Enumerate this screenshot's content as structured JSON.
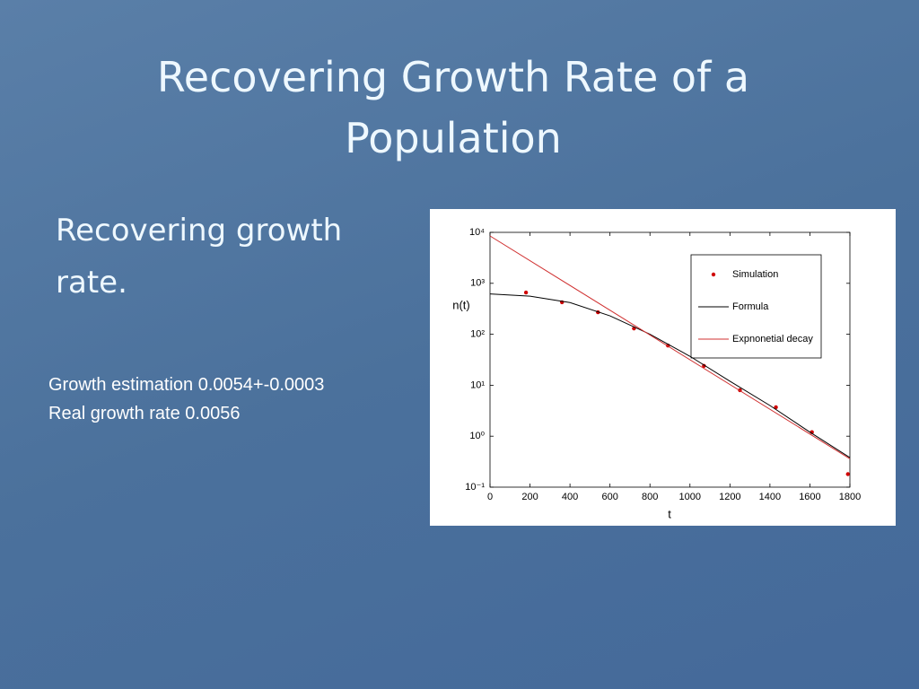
{
  "slide": {
    "title": "Recovering Growth Rate of a Population",
    "bullet": "Recovering growth rate.",
    "notes": [
      "Growth estimation 0.0054+-0.0003",
      "Real growth rate 0.0056"
    ]
  },
  "chart_data": {
    "type": "scatter-line",
    "xlabel": "t",
    "ylabel": "n(t)",
    "xlim": [
      0,
      1800
    ],
    "xticks": [
      0,
      200,
      400,
      600,
      800,
      1000,
      1200,
      1400,
      1600,
      1800
    ],
    "ylim": [
      0.1,
      10000
    ],
    "yscale": "log",
    "yticks": [
      {
        "value": 0.1,
        "label": "10⁻¹"
      },
      {
        "value": 1,
        "label": "10⁰"
      },
      {
        "value": 10,
        "label": "10¹"
      },
      {
        "value": 100,
        "label": "10²"
      },
      {
        "value": 1000,
        "label": "10³"
      },
      {
        "value": 10000,
        "label": "10⁴"
      }
    ],
    "grid": false,
    "legend": "upper right",
    "series": [
      {
        "name": "Simulation",
        "kind": "points",
        "color": "#d00000",
        "x": [
          180,
          360,
          540,
          720,
          890,
          1070,
          1250,
          1430,
          1610,
          1790
        ],
        "values": [
          660,
          425,
          270,
          130,
          60,
          24,
          8,
          3.7,
          1.2,
          0.18
        ]
      },
      {
        "name": "Formula",
        "kind": "line",
        "color": "#000000",
        "x": [
          0,
          200,
          400,
          600,
          800,
          1000,
          1200,
          1400,
          1600,
          1800
        ],
        "values": [
          620,
          560,
          420,
          230,
          100,
          37,
          12,
          4,
          1.2,
          0.38
        ]
      },
      {
        "name": "Expnonetial decay",
        "kind": "line",
        "color": "#d03030",
        "x": [
          0,
          1800
        ],
        "values": [
          8500,
          0.36
        ]
      }
    ]
  }
}
